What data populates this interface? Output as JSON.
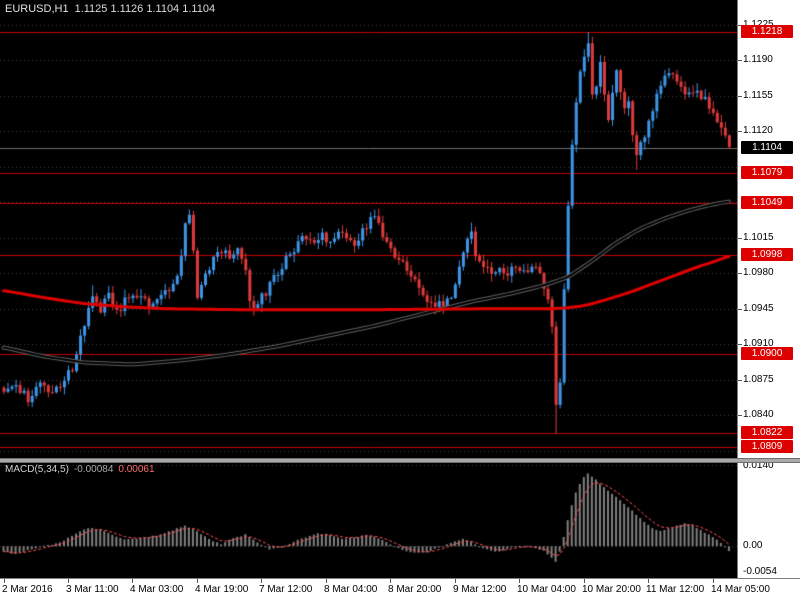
{
  "window": {
    "title_symbol": "EURUSD,H1",
    "title_quotes": "1.1125 1.1126 1.1104 1.1104"
  },
  "colors": {
    "background": "#000000",
    "grid": "#3a3a3a",
    "bull": "#3e95e8",
    "bear": "#dd3a3a",
    "sr_line": "#c40000",
    "badge_red": "#dd0000",
    "badge_black": "#000000",
    "bid_line": "#6f6f6f",
    "ma_slow": "#000000",
    "ma_slow_halo": "#606060",
    "ma_fast": "#e00000",
    "macd_bar": "#7f7f7f",
    "macd_signal": "#ff5050",
    "axis_bg": "#ffffff",
    "axis_text": "#000000"
  },
  "chart_data": {
    "type": "candlestick",
    "symbol": "EURUSD",
    "timeframe": "H1",
    "quote": {
      "open": 1.1125,
      "high": 1.1126,
      "low": 1.1104,
      "close": 1.1104
    },
    "last_price": 1.1104,
    "n_candles": 181,
    "price_axis": {
      "min": 1.0805,
      "max": 1.1225,
      "step": 0.0035,
      "visible_labels": [
        1.1225,
        1.119,
        1.1155,
        1.112,
        1.1015,
        1.098,
        1.0945,
        1.091,
        1.0875,
        1.084
      ]
    },
    "time_labels": [
      "2 Mar 2016",
      "3 Mar 11:00",
      "4 Mar 03:00",
      "4 Mar 19:00",
      "7 Mar 12:00",
      "8 Mar 04:00",
      "8 Mar 20:00",
      "9 Mar 12:00",
      "10 Mar 04:00",
      "10 Mar 20:00",
      "11 Mar 12:00",
      "14 Mar 05:00"
    ],
    "candles_per_label": 16,
    "levels": [
      1.1218,
      1.1079,
      1.1049,
      1.0998,
      1.09,
      1.0822,
      1.0809
    ],
    "close_keypoints": [
      [
        0,
        1.0862
      ],
      [
        3,
        1.0868
      ],
      [
        6,
        1.0857
      ],
      [
        9,
        1.087
      ],
      [
        12,
        1.0862
      ],
      [
        15,
        1.0872
      ],
      [
        17,
        1.0888
      ],
      [
        19,
        1.0916
      ],
      [
        21,
        1.0948
      ],
      [
        22,
        1.096
      ],
      [
        24,
        1.0944
      ],
      [
        26,
        1.0958
      ],
      [
        28,
        1.0941
      ],
      [
        30,
        1.0952
      ],
      [
        33,
        1.0958
      ],
      [
        36,
        1.0948
      ],
      [
        39,
        1.0958
      ],
      [
        42,
        1.0968
      ],
      [
        44,
        1.0996
      ],
      [
        45,
        1.1026
      ],
      [
        46,
        1.1036
      ],
      [
        47,
        1.1006
      ],
      [
        48,
        1.0958
      ],
      [
        50,
        1.0978
      ],
      [
        52,
        1.0996
      ],
      [
        54,
        1.1002
      ],
      [
        56,
        1.0996
      ],
      [
        58,
        1.1004
      ],
      [
        60,
        1.0984
      ],
      [
        61,
        1.095
      ],
      [
        63,
        1.095
      ],
      [
        65,
        1.0962
      ],
      [
        67,
        1.0976
      ],
      [
        69,
        1.0988
      ],
      [
        71,
        1.1
      ],
      [
        73,
        1.101
      ],
      [
        75,
        1.1016
      ],
      [
        77,
        1.101
      ],
      [
        79,
        1.1018
      ],
      [
        81,
        1.1012
      ],
      [
        83,
        1.102
      ],
      [
        85,
        1.1014
      ],
      [
        87,
        1.1008
      ],
      [
        89,
        1.102
      ],
      [
        91,
        1.1031
      ],
      [
        92,
        1.1036
      ],
      [
        93,
        1.1026
      ],
      [
        95,
        1.1012
      ],
      [
        97,
        1.0998
      ],
      [
        99,
        1.0988
      ],
      [
        101,
        1.0977
      ],
      [
        103,
        1.0967
      ],
      [
        105,
        1.0955
      ],
      [
        107,
        1.0946
      ],
      [
        109,
        1.0951
      ],
      [
        111,
        1.0959
      ],
      [
        113,
        1.0986
      ],
      [
        115,
        1.1013
      ],
      [
        116,
        1.1021
      ],
      [
        117,
        1.1
      ],
      [
        119,
        1.0988
      ],
      [
        121,
        1.098
      ],
      [
        123,
        1.0986
      ],
      [
        125,
        1.098
      ],
      [
        127,
        1.0988
      ],
      [
        129,
        1.0982
      ],
      [
        131,
        1.0988
      ],
      [
        133,
        1.0982
      ],
      [
        135,
        1.0956
      ],
      [
        136,
        1.0928
      ],
      [
        137,
        1.0848
      ],
      [
        138,
        1.0876
      ],
      [
        139,
        1.0966
      ],
      [
        140,
        1.1046
      ],
      [
        141,
        1.1108
      ],
      [
        142,
        1.1146
      ],
      [
        143,
        1.1176
      ],
      [
        144,
        1.1192
      ],
      [
        145,
        1.1206
      ],
      [
        146,
        1.1152
      ],
      [
        147,
        1.1168
      ],
      [
        148,
        1.1188
      ],
      [
        149,
        1.116
      ],
      [
        150,
        1.1132
      ],
      [
        151,
        1.1156
      ],
      [
        152,
        1.1184
      ],
      [
        153,
        1.116
      ],
      [
        154,
        1.114
      ],
      [
        155,
        1.115
      ],
      [
        156,
        1.112
      ],
      [
        157,
        1.1098
      ],
      [
        158,
        1.1108
      ],
      [
        160,
        1.1126
      ],
      [
        162,
        1.1156
      ],
      [
        164,
        1.1178
      ],
      [
        166,
        1.118
      ],
      [
        168,
        1.1162
      ],
      [
        170,
        1.1156
      ],
      [
        172,
        1.1162
      ],
      [
        174,
        1.115
      ],
      [
        176,
        1.1142
      ],
      [
        178,
        1.1124
      ],
      [
        180,
        1.1104
      ]
    ],
    "wick_extremes": [
      {
        "i": 22,
        "high": 1.0968
      },
      {
        "i": 46,
        "high": 1.1043
      },
      {
        "i": 92,
        "high": 1.1042
      },
      {
        "i": 116,
        "high": 1.103
      },
      {
        "i": 137,
        "low": 1.0822
      },
      {
        "i": 145,
        "high": 1.1218
      },
      {
        "i": 157,
        "low": 1.1082
      }
    ],
    "ma_slow_keypoints": [
      [
        0,
        1.0907
      ],
      [
        10,
        1.0898
      ],
      [
        20,
        1.0892
      ],
      [
        32,
        1.089
      ],
      [
        44,
        1.0894
      ],
      [
        56,
        1.09
      ],
      [
        68,
        1.0908
      ],
      [
        80,
        1.0918
      ],
      [
        92,
        1.0928
      ],
      [
        104,
        1.094
      ],
      [
        116,
        1.0952
      ],
      [
        126,
        1.096
      ],
      [
        134,
        1.0968
      ],
      [
        140,
        1.0976
      ],
      [
        146,
        1.0992
      ],
      [
        152,
        1.101
      ],
      [
        158,
        1.1024
      ],
      [
        164,
        1.1034
      ],
      [
        170,
        1.1042
      ],
      [
        175,
        1.1047
      ],
      [
        180,
        1.1051
      ]
    ],
    "ma_fast_keypoints": [
      [
        0,
        1.0963
      ],
      [
        10,
        1.0956
      ],
      [
        20,
        1.095
      ],
      [
        30,
        1.0947
      ],
      [
        40,
        1.0945
      ],
      [
        60,
        1.0944
      ],
      [
        90,
        1.0944
      ],
      [
        120,
        1.0945
      ],
      [
        136,
        1.0945
      ],
      [
        140,
        1.0946
      ],
      [
        144,
        1.0948
      ],
      [
        148,
        1.0952
      ],
      [
        152,
        1.0957
      ],
      [
        156,
        1.0962
      ],
      [
        160,
        1.0968
      ],
      [
        164,
        1.0974
      ],
      [
        168,
        1.098
      ],
      [
        172,
        1.0986
      ],
      [
        176,
        1.0991
      ],
      [
        180,
        1.0997
      ]
    ],
    "indicator": {
      "name": "MACD",
      "params": "5,34,5",
      "label": "MACD(5,34,5)",
      "value_main": "-0.00084",
      "value_signal": "0.00061",
      "axis": {
        "min": -0.0055,
        "max": 0.01475,
        "grid_levels": [
          0.014,
          0.0
        ],
        "labels": [
          "0.0140",
          "0.00",
          "-0.0054"
        ]
      },
      "hist_keypoints": [
        [
          0,
          -0.001
        ],
        [
          3,
          -0.0013
        ],
        [
          6,
          -0.0007
        ],
        [
          9,
          -0.0001
        ],
        [
          12,
          0.0003
        ],
        [
          15,
          0.001
        ],
        [
          18,
          0.0022
        ],
        [
          21,
          0.0032
        ],
        [
          24,
          0.003
        ],
        [
          27,
          0.002
        ],
        [
          30,
          0.0012
        ],
        [
          33,
          0.0013
        ],
        [
          36,
          0.0016
        ],
        [
          39,
          0.002
        ],
        [
          42,
          0.0028
        ],
        [
          45,
          0.0036
        ],
        [
          48,
          0.0026
        ],
        [
          51,
          0.0012
        ],
        [
          54,
          0.0004
        ],
        [
          57,
          0.0014
        ],
        [
          60,
          0.002
        ],
        [
          63,
          0.0006
        ],
        [
          66,
          -0.0006
        ],
        [
          69,
          -0.0002
        ],
        [
          72,
          0.0008
        ],
        [
          75,
          0.0016
        ],
        [
          78,
          0.0022
        ],
        [
          81,
          0.002
        ],
        [
          84,
          0.0013
        ],
        [
          87,
          0.0015
        ],
        [
          90,
          0.0019
        ],
        [
          93,
          0.0014
        ],
        [
          96,
          0.0004
        ],
        [
          99,
          -0.0006
        ],
        [
          102,
          -0.0012
        ],
        [
          105,
          -0.001
        ],
        [
          108,
          -0.0003
        ],
        [
          111,
          0.0006
        ],
        [
          114,
          0.0012
        ],
        [
          116,
          0.0008
        ],
        [
          119,
          -0.0004
        ],
        [
          122,
          -0.001
        ],
        [
          125,
          -0.0005
        ],
        [
          128,
          0.0001
        ],
        [
          131,
          -0.0001
        ],
        [
          134,
          -0.0008
        ],
        [
          136,
          -0.002
        ],
        [
          137,
          -0.0026
        ],
        [
          138,
          -0.001
        ],
        [
          139,
          0.0015
        ],
        [
          140,
          0.0045
        ],
        [
          141,
          0.007
        ],
        [
          142,
          0.0092
        ],
        [
          143,
          0.0108
        ],
        [
          144,
          0.012
        ],
        [
          145,
          0.0126
        ],
        [
          147,
          0.0115
        ],
        [
          149,
          0.0102
        ],
        [
          151,
          0.009
        ],
        [
          153,
          0.008
        ],
        [
          155,
          0.0068
        ],
        [
          157,
          0.0055
        ],
        [
          159,
          0.0042
        ],
        [
          161,
          0.0032
        ],
        [
          163,
          0.0026
        ],
        [
          165,
          0.003
        ],
        [
          167,
          0.0036
        ],
        [
          169,
          0.004
        ],
        [
          171,
          0.0036
        ],
        [
          173,
          0.0028
        ],
        [
          175,
          0.002
        ],
        [
          177,
          0.0012
        ],
        [
          178,
          0.0006
        ],
        [
          179,
          -0.0002
        ],
        [
          180,
          -0.0008
        ]
      ]
    }
  }
}
